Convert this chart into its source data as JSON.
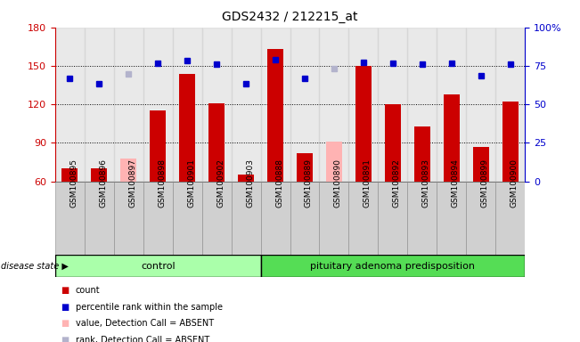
{
  "title": "GDS2432 / 212215_at",
  "samples": [
    "GSM100895",
    "GSM100896",
    "GSM100897",
    "GSM100898",
    "GSM100901",
    "GSM100902",
    "GSM100903",
    "GSM100888",
    "GSM100889",
    "GSM100890",
    "GSM100891",
    "GSM100892",
    "GSM100893",
    "GSM100894",
    "GSM100899",
    "GSM100900"
  ],
  "bar_values": [
    70,
    70,
    null,
    115,
    144,
    121,
    65,
    163,
    82,
    null,
    150,
    120,
    103,
    128,
    87,
    122
  ],
  "bar_absent": [
    null,
    null,
    78,
    null,
    null,
    null,
    null,
    null,
    null,
    91,
    null,
    null,
    null,
    null,
    null,
    null
  ],
  "square_values": [
    140,
    136,
    null,
    152,
    154,
    151,
    136,
    155,
    140,
    null,
    153,
    152,
    151,
    152,
    142,
    151
  ],
  "square_absent": [
    null,
    null,
    144,
    null,
    null,
    null,
    null,
    null,
    null,
    148,
    null,
    null,
    null,
    null,
    null,
    null
  ],
  "ylim": [
    60,
    180
  ],
  "yticks": [
    60,
    90,
    120,
    150,
    180
  ],
  "right_yticks": [
    0,
    25,
    50,
    75,
    100
  ],
  "bar_color": "#cc0000",
  "bar_absent_color": "#ffb3b3",
  "square_color": "#0000cc",
  "square_absent_color": "#b3b3cc",
  "control_color": "#aaffaa",
  "pituitary_color": "#55dd55",
  "tick_bg_color": "#d0d0d0",
  "n_control": 7,
  "n_pituitary": 9
}
